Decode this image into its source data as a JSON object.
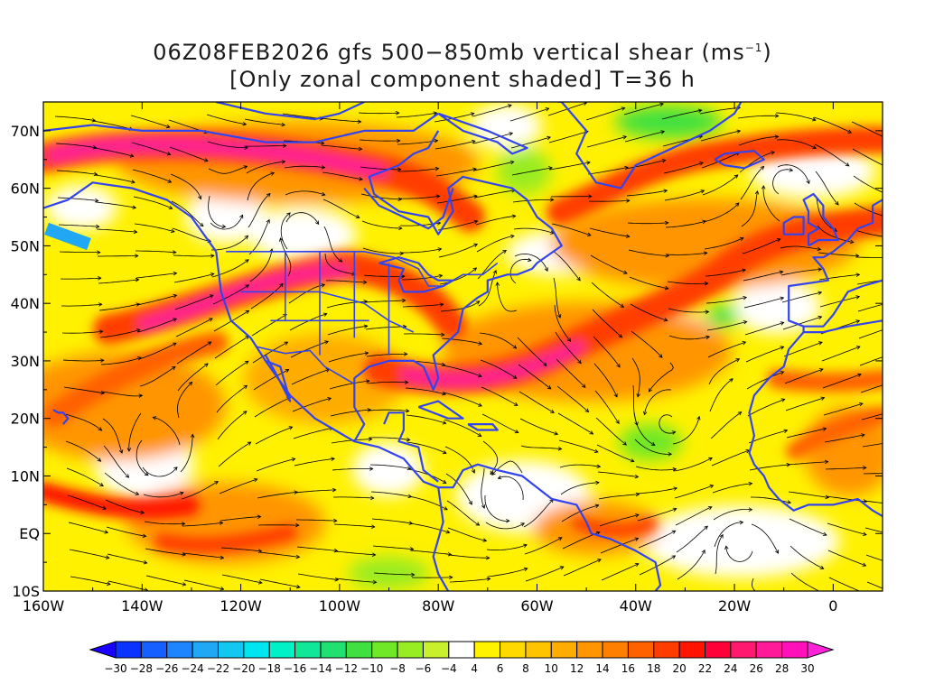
{
  "title": {
    "line1_prefix": "06Z08FEB2026 gfs 500−850mb vertical shear (ms",
    "line1_sup": "−1",
    "line1_suffix": ")",
    "line2": "[Only zonal component shaded] T=36 h"
  },
  "map": {
    "lat_labels": [
      "70N",
      "60N",
      "50N",
      "40N",
      "30N",
      "20N",
      "10N",
      "EQ",
      "10S"
    ],
    "lat_values": [
      70,
      60,
      50,
      40,
      30,
      20,
      10,
      0,
      -10
    ],
    "lon_labels": [
      "160W",
      "140W",
      "120W",
      "100W",
      "80W",
      "60W",
      "40W",
      "20W",
      "0"
    ],
    "lon_values": [
      -160,
      -140,
      -120,
      -100,
      -80,
      -60,
      -40,
      -20,
      0
    ],
    "lon_range": [
      -160,
      10
    ],
    "lat_range": [
      -10,
      75
    ],
    "coastline_color": "#3344ee",
    "streamline_color": "#000000"
  },
  "colorbar": {
    "labels": [
      "−30",
      "−28",
      "−26",
      "−24",
      "−22",
      "−20",
      "−18",
      "−16",
      "−14",
      "−12",
      "−10",
      "−8",
      "−6",
      "−4",
      "4",
      "6",
      "8",
      "10",
      "12",
      "14",
      "16",
      "18",
      "20",
      "22",
      "24",
      "26",
      "28",
      "30"
    ],
    "colors": [
      "#1a00ff",
      "#0a33ff",
      "#1560ff",
      "#1f85ff",
      "#20a8f5",
      "#12c8f0",
      "#00e6f0",
      "#00f0c8",
      "#10e898",
      "#20e070",
      "#40e040",
      "#70e828",
      "#98ec22",
      "#c8f02c",
      "#ffffff",
      "#fff300",
      "#ffd900",
      "#ffc400",
      "#ffac00",
      "#ff9500",
      "#ff7f00",
      "#ff6000",
      "#ff3c00",
      "#ff1400",
      "#ff0038",
      "#ff1a70",
      "#ff1a98",
      "#ff10b8",
      "#ff22d8"
    ]
  }
}
